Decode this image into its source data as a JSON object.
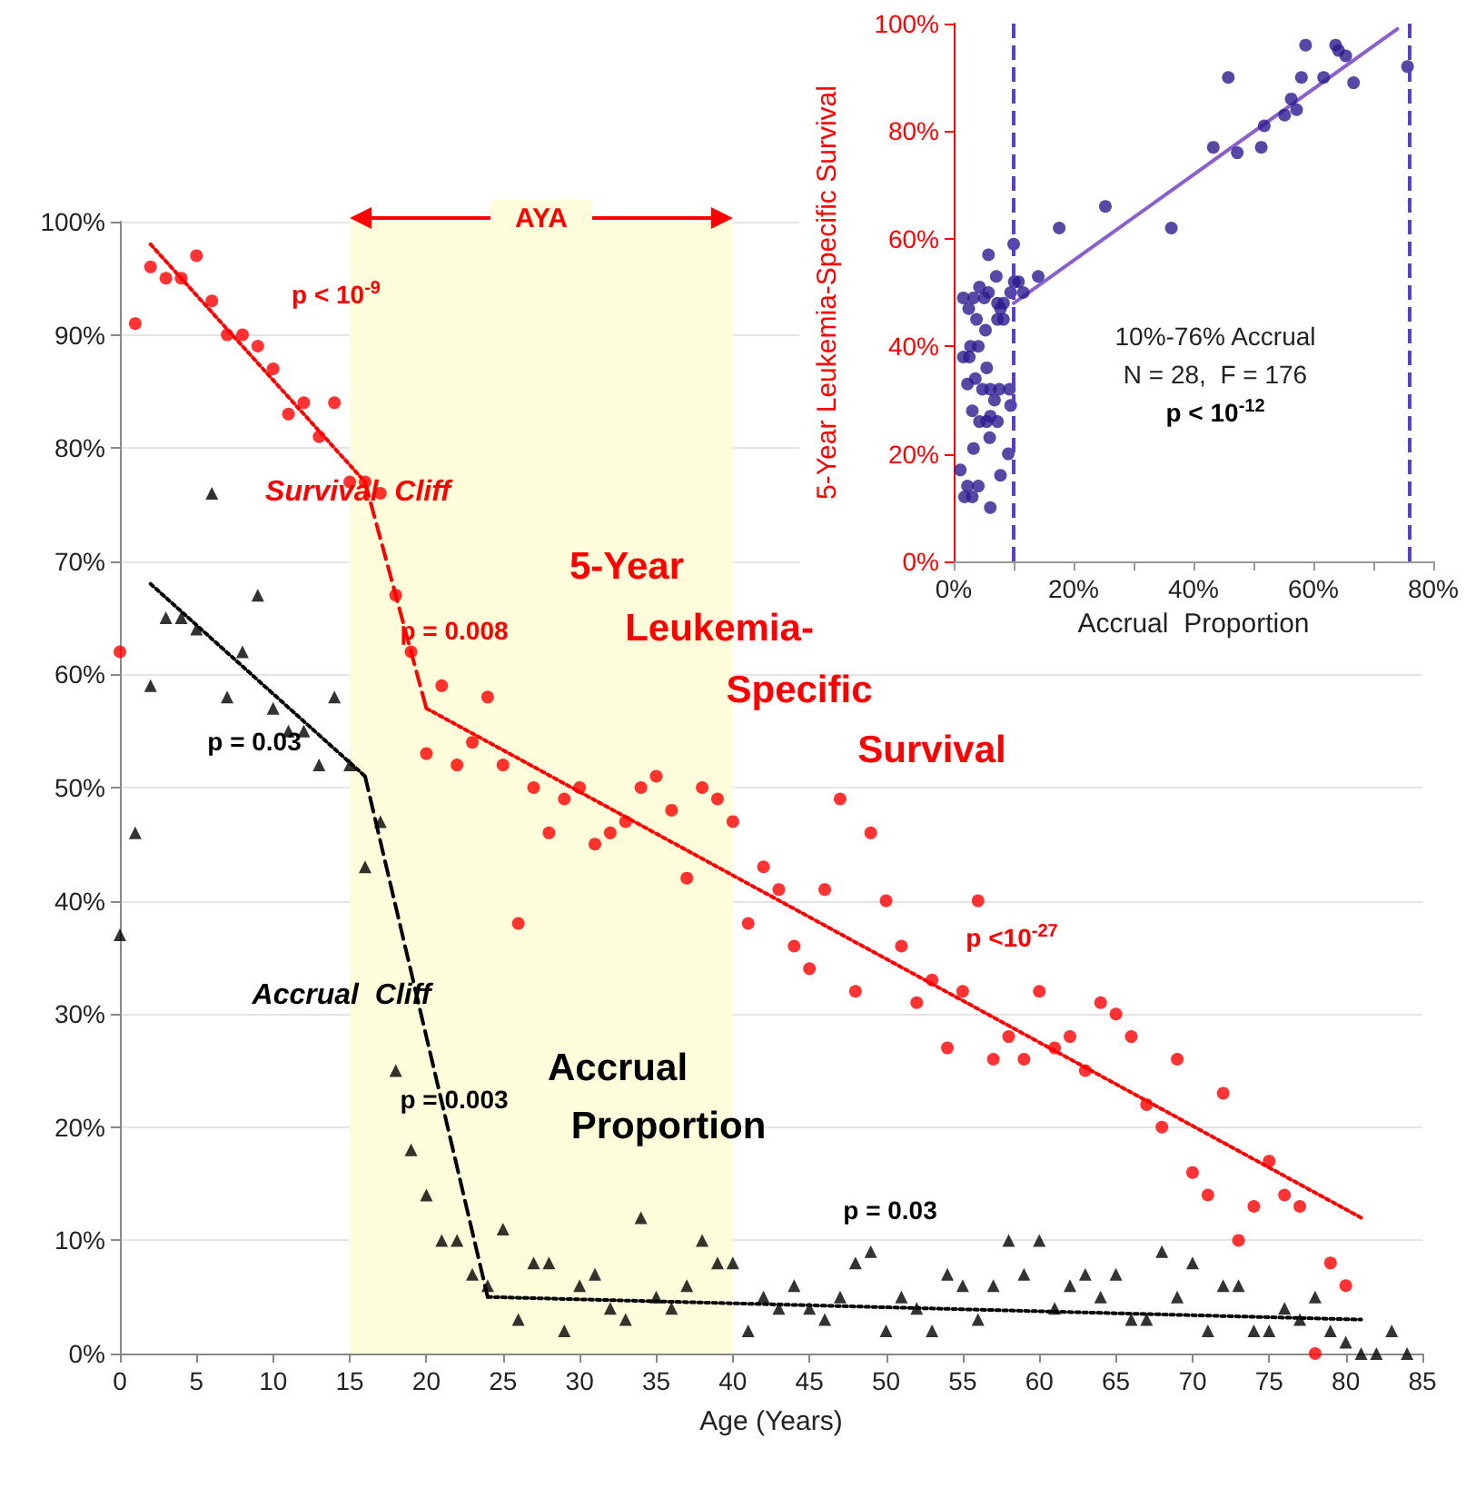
{
  "chart_data": [
    {
      "type": "scatter",
      "xlabel": "Age (Years)",
      "x": [
        0,
        1,
        2,
        3,
        4,
        5,
        6,
        7,
        8,
        9,
        10,
        11,
        12,
        13,
        14,
        15,
        16,
        17,
        18,
        19,
        20,
        21,
        22,
        23,
        24,
        25,
        26,
        27,
        28,
        29,
        30,
        31,
        32,
        33,
        34,
        35,
        36,
        37,
        38,
        39,
        40,
        41,
        42,
        43,
        44,
        45,
        46,
        47,
        48,
        49,
        50,
        51,
        52,
        53,
        54,
        55,
        56,
        57,
        58,
        59,
        60,
        61,
        62,
        63,
        64,
        65,
        66,
        67,
        68,
        69,
        70,
        71,
        72,
        73,
        74,
        75,
        76,
        77,
        78,
        79,
        80,
        81,
        82,
        83,
        84
      ],
      "xlim": [
        0,
        85
      ],
      "xticks": [
        0,
        5,
        10,
        15,
        20,
        25,
        30,
        35,
        40,
        45,
        50,
        55,
        60,
        65,
        70,
        75,
        80,
        85
      ],
      "ylim": [
        0,
        100
      ],
      "yticks": [
        {
          "value": 0,
          "label": "0%"
        },
        {
          "value": 10,
          "label": "10%"
        },
        {
          "value": 20,
          "label": "20%"
        },
        {
          "value": 30,
          "label": "30%"
        },
        {
          "value": 40,
          "label": "40%"
        },
        {
          "value": 50,
          "label": "50%"
        },
        {
          "value": 60,
          "label": "60%"
        },
        {
          "value": 70,
          "label": "70%"
        },
        {
          "value": 80,
          "label": "80%"
        },
        {
          "value": 90,
          "label": "90%"
        },
        {
          "value": 100,
          "label": "100%"
        }
      ],
      "grid": "y",
      "legend": false,
      "series": [
        {
          "name": "5-Year Leukemia-Specific Survival",
          "color": "#ff0000",
          "marker": "circle",
          "values": [
            62,
            91,
            96,
            95,
            95,
            97,
            93,
            90,
            90,
            89,
            87,
            83,
            84,
            81,
            84,
            77,
            77,
            76,
            67,
            62,
            53,
            59,
            52,
            54,
            58,
            52,
            38,
            50,
            46,
            49,
            50,
            45,
            46,
            47,
            50,
            51,
            48,
            42,
            50,
            49,
            47,
            38,
            43,
            41,
            36,
            34,
            41,
            49,
            32,
            46,
            40,
            36,
            31,
            33,
            27,
            32,
            40,
            26,
            28,
            26,
            32,
            27,
            28,
            25,
            31,
            30,
            28,
            22,
            20,
            26,
            16,
            14,
            23,
            10,
            13,
            17,
            14,
            13,
            0,
            8,
            6,
            null,
            null,
            null,
            null
          ]
        },
        {
          "name": "Accrual Proportion",
          "color": "#000000",
          "marker": "triangle",
          "values": [
            37,
            46,
            59,
            65,
            65,
            64,
            76,
            58,
            62,
            67,
            57,
            55,
            55,
            52,
            58,
            52,
            43,
            47,
            25,
            18,
            14,
            10,
            10,
            7,
            6,
            11,
            3,
            8,
            8,
            2,
            6,
            7,
            4,
            3,
            12,
            5,
            4,
            6,
            10,
            8,
            8,
            2,
            5,
            4,
            6,
            4,
            3,
            5,
            8,
            9,
            2,
            5,
            4,
            2,
            7,
            6,
            3,
            6,
            10,
            7,
            10,
            4,
            6,
            7,
            5,
            7,
            3,
            3,
            9,
            5,
            8,
            2,
            6,
            6,
            2,
            2,
            4,
            3,
            5,
            2,
            1,
            0,
            0,
            2,
            0
          ]
        },
        {
          "type": "line",
          "color": "#ff0000",
          "line_style": "dotted",
          "marker": "none",
          "x": [
            2,
            16
          ],
          "values": [
            98,
            77
          ]
        },
        {
          "type": "line",
          "color": "#ff0000",
          "line_style": "dashed",
          "marker": "none",
          "x": [
            16,
            20
          ],
          "values": [
            77,
            57
          ]
        },
        {
          "type": "line",
          "color": "#ff0000",
          "line_style": "dotted",
          "marker": "none",
          "x": [
            20,
            81
          ],
          "values": [
            57,
            12
          ]
        },
        {
          "type": "line",
          "color": "#000000",
          "line_style": "dotted",
          "marker": "none",
          "x": [
            2,
            16
          ],
          "values": [
            68,
            51
          ]
        },
        {
          "type": "line",
          "color": "#000000",
          "line_style": "dashed",
          "marker": "none",
          "x": [
            16,
            24
          ],
          "values": [
            51,
            5
          ]
        },
        {
          "type": "line",
          "color": "#000000",
          "line_style": "dotted",
          "marker": "none",
          "x": [
            24,
            81
          ],
          "values": [
            5,
            3
          ]
        }
      ],
      "bands": [
        {
          "axis": "x",
          "from": 15,
          "to": 40,
          "label": "AYA",
          "color": "#fdfddc"
        }
      ],
      "annotations": [
        "p < 10$^{-9}$",
        "Survival  Cliff",
        "p = 0.008",
        "p <10$^{-27}$",
        "p = 0.03",
        "Accrual  Cliff",
        "p = 0.003",
        "p = 0.03"
      ]
    },
    {
      "type": "scatter",
      "xlabel": "Accrual  Proportion",
      "ylabel": "5-Year Leukemia-Specific Survival",
      "xlim": [
        0,
        80
      ],
      "xticks": [
        {
          "value": 0,
          "label": "0%"
        },
        {
          "value": 10,
          "label": null
        },
        {
          "value": 20,
          "label": "20%"
        },
        {
          "value": 30,
          "label": null
        },
        {
          "value": 40,
          "label": "40%"
        },
        {
          "value": 50,
          "label": null
        },
        {
          "value": 60,
          "label": "60%"
        },
        {
          "value": 70,
          "label": null
        },
        {
          "value": 80,
          "label": "80%"
        }
      ],
      "ylim": [
        0,
        100
      ],
      "yticks": [
        {
          "value": 0,
          "label": "0%"
        },
        {
          "value": 20,
          "label": "20%"
        },
        {
          "value": 40,
          "label": "40%"
        },
        {
          "value": 60,
          "label": "60%"
        },
        {
          "value": 80,
          "label": "80%"
        },
        {
          "value": 100,
          "label": "100%"
        }
      ],
      "legend": false,
      "series": [
        {
          "color": "#2b1b8e",
          "marker": "circle",
          "x": [
            1.1,
            1.6,
            1.6,
            2.6,
            1.8,
            2.3,
            3.1,
            4.1,
            2.5,
            3.3,
            3.8,
            4.3,
            5.1,
            5.3,
            5.8,
            5.8,
            2.8,
            4.1,
            2.3,
            3.6,
            4.8,
            5.5,
            6.1,
            3.1,
            4.3,
            5.5,
            6.8,
            3.3,
            6,
            6.1,
            7.1,
            7.3,
            8.3,
            7.3,
            7.8,
            8.3,
            7.6,
            7.3,
            7.8,
            6.1,
            9.1,
            9.3,
            9.5,
            9.5,
            10,
            10.1,
            10.8,
            11.6,
            14.1,
            17.6,
            25.3,
            36.3,
            43.3,
            45.8,
            47.3,
            51.3,
            51.8,
            55.2,
            56.3,
            57.2,
            58,
            58.7,
            61.7,
            63.7,
            64.2,
            65.4,
            66.7,
            75.7
          ],
          "values": [
            17,
            49,
            38,
            38,
            12,
            14,
            12,
            14,
            47,
            49,
            45,
            51,
            49,
            43,
            57,
            50,
            40,
            40,
            33,
            34,
            32,
            36,
            32,
            28,
            26,
            26,
            30,
            21,
            23,
            27,
            53,
            48,
            48,
            45,
            47,
            45,
            32,
            26,
            16,
            10,
            20,
            32,
            29,
            50,
            59,
            52,
            52,
            50,
            53,
            62,
            66,
            62,
            77,
            90,
            76,
            77,
            81,
            83,
            86,
            84,
            90,
            96,
            90,
            96,
            95,
            94,
            89,
            92
          ]
        },
        {
          "type": "line",
          "color": "#8a5fd0",
          "line_style": "solid",
          "marker": "none",
          "x": [
            10,
            74
          ],
          "values": [
            48,
            99
          ]
        }
      ],
      "ref_lines": [
        {
          "axis": "x",
          "value": 10,
          "color": "#5a3fc0",
          "line_style": "dashed"
        },
        {
          "axis": "x",
          "value": 76,
          "color": "#5a3fc0",
          "line_style": "dashed"
        }
      ],
      "annotations": [
        "10%-76% Accrual",
        "N = 28,  F = 176",
        "p < 10$^{-12}$"
      ]
    }
  ]
}
